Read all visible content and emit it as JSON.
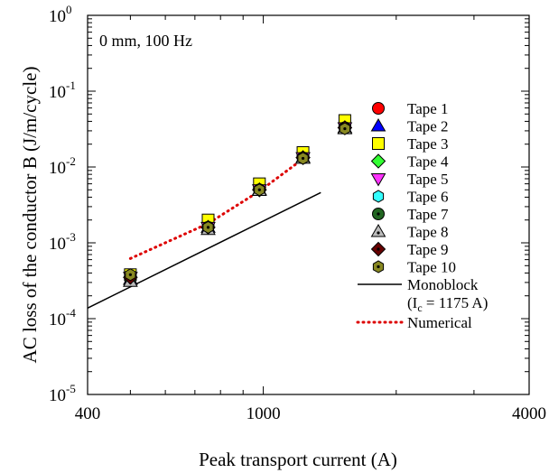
{
  "chart_data": {
    "type": "scatter",
    "title": "",
    "annotation": "0 mm, 100 Hz",
    "xlabel": "Peak transport current (A)",
    "ylabel": "AC loss of the conductor B (J/m/cycle)",
    "xscale": "log",
    "yscale": "log",
    "xlim": [
      400,
      4000
    ],
    "ylim": [
      1e-05,
      1
    ],
    "x_ticks": [
      {
        "value": 400,
        "label": "400"
      },
      {
        "value": 1000,
        "label": "1000"
      },
      {
        "value": 4000,
        "label": "4000"
      }
    ],
    "y_ticks": [
      {
        "value": 1e-05,
        "base": "10",
        "exp": "-5"
      },
      {
        "value": 0.0001,
        "base": "10",
        "exp": "-4"
      },
      {
        "value": 0.001,
        "base": "10",
        "exp": "-3"
      },
      {
        "value": 0.01,
        "base": "10",
        "exp": "-2"
      },
      {
        "value": 0.1,
        "base": "10",
        "exp": "-1"
      },
      {
        "value": 1,
        "base": "10",
        "exp": "0"
      }
    ],
    "grid": false,
    "legend_position": "right",
    "series": [
      {
        "name": "Tape 1",
        "marker": "circle",
        "color": "#ff0000",
        "x": [
          500,
          750,
          980,
          1230,
          1530
        ],
        "y": [
          0.00036,
          0.0017,
          0.0052,
          0.0138,
          0.034
        ]
      },
      {
        "name": "Tape 2",
        "marker": "triangle-up",
        "color": "#0000ff",
        "x": [
          500,
          750,
          980,
          1230,
          1530
        ],
        "y": [
          0.00033,
          0.0016,
          0.005,
          0.0134,
          0.033
        ]
      },
      {
        "name": "Tape 3",
        "marker": "square",
        "color": "#ffff00",
        "x": [
          500,
          750,
          980,
          1230,
          1530
        ],
        "y": [
          0.00038,
          0.002,
          0.006,
          0.0155,
          0.041
        ]
      },
      {
        "name": "Tape 4",
        "marker": "diamond",
        "color": "#33ff33",
        "x": [
          500,
          750,
          980,
          1230,
          1530
        ],
        "y": [
          0.00035,
          0.0016,
          0.005,
          0.0133,
          0.033
        ]
      },
      {
        "name": "Tape 5",
        "marker": "triangle-down",
        "color": "#ff33ff",
        "x": [
          500,
          750,
          980,
          1230,
          1530
        ],
        "y": [
          0.00035,
          0.0016,
          0.005,
          0.0133,
          0.033
        ]
      },
      {
        "name": "Tape 6",
        "marker": "hexagon",
        "color": "#33ffff",
        "x": [
          500,
          750,
          980,
          1230,
          1530
        ],
        "y": [
          0.00035,
          0.0016,
          0.005,
          0.0133,
          0.033
        ]
      },
      {
        "name": "Tape 7",
        "marker": "circle-dot",
        "color": "#226622",
        "x": [
          500,
          750,
          980,
          1230,
          1530
        ],
        "y": [
          0.00034,
          0.0016,
          0.005,
          0.0132,
          0.033
        ]
      },
      {
        "name": "Tape 8",
        "marker": "triangle-up-dot",
        "color": "#bbbbbb",
        "x": [
          500,
          750,
          980,
          1230,
          1530
        ],
        "y": [
          0.00031,
          0.0015,
          0.0049,
          0.013,
          0.032
        ]
      },
      {
        "name": "Tape 9",
        "marker": "diamond-dot",
        "color": "#660000",
        "x": [
          500,
          750,
          980,
          1230,
          1530
        ],
        "y": [
          0.00035,
          0.0016,
          0.005,
          0.0133,
          0.033
        ]
      },
      {
        "name": "Tape 10",
        "marker": "hexagon-dot",
        "color": "#888822",
        "x": [
          500,
          750,
          980,
          1230,
          1530
        ],
        "y": [
          0.00038,
          0.0016,
          0.005,
          0.013,
          0.032
        ]
      }
    ],
    "lines": [
      {
        "name": "Monoblock",
        "name_extra": "= 1175 A)",
        "name_extra_prefix": "(I",
        "name_extra_sub": "c",
        "style": "solid",
        "color": "#000000",
        "x": [
          400,
          1350
        ],
        "y": [
          0.000138,
          0.0046
        ]
      },
      {
        "name": "Numerical",
        "style": "dotted",
        "color": "#dd0000",
        "x": [
          500,
          750,
          980,
          1230
        ],
        "y": [
          0.00062,
          0.0018,
          0.0048,
          0.0128
        ]
      }
    ]
  }
}
